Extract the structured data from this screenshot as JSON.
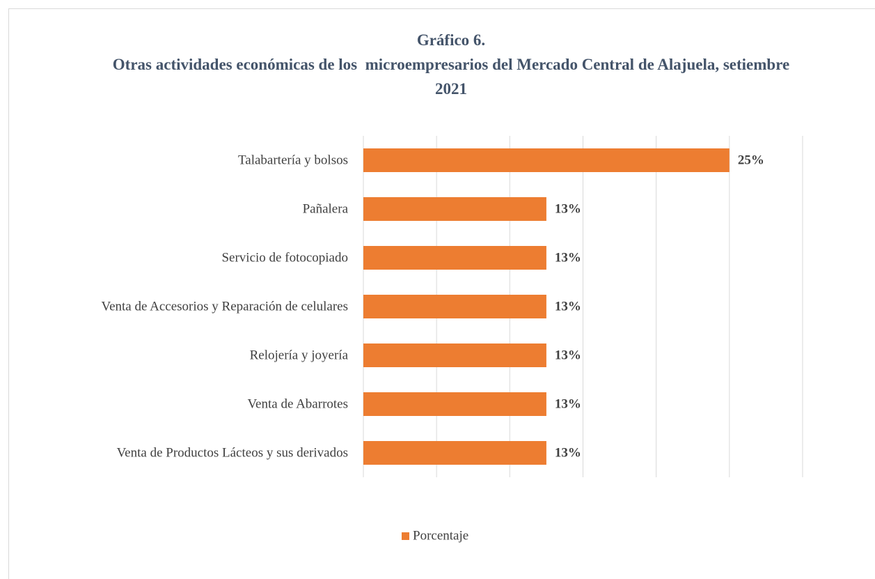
{
  "chart_data": {
    "type": "barh",
    "title": "Gráfico 6.",
    "subtitle": "Otras actividades económicas de los  microempresarios del Mercado Central de Alajuela, setiembre 2021",
    "categories": [
      "Talabartería y bolsos",
      "Pañalera",
      "Servicio de fotocopiado",
      "Venta de Accesorios y Reparación de celulares",
      "Relojería y joyería",
      "Venta de Abarrotes",
      "Venta de Productos Lácteos y sus derivados"
    ],
    "series": [
      {
        "name": "Porcentaje",
        "color": "#ed7d31",
        "values": [
          25,
          12.5,
          12.5,
          12.5,
          12.5,
          12.5,
          12.5
        ],
        "value_labels": [
          "25%",
          "13%",
          "13%",
          "13%",
          "13%",
          "13%",
          "13%"
        ]
      }
    ],
    "xlim": [
      0,
      30
    ],
    "xticks": [
      0,
      5,
      10,
      15,
      20,
      25,
      30
    ],
    "grid": true,
    "legend": "bottom"
  }
}
